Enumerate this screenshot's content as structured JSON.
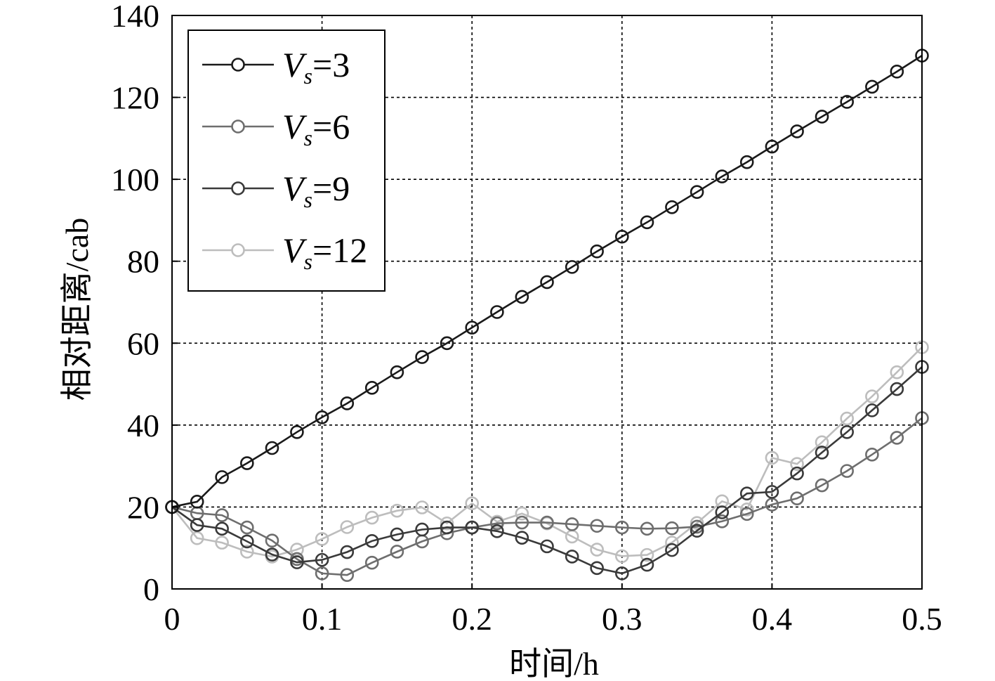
{
  "chart_data": {
    "type": "line",
    "title": "",
    "xlabel": "时间/h",
    "ylabel": "相对距离/cab",
    "xlim": [
      0,
      0.5
    ],
    "ylim": [
      0,
      140
    ],
    "xticks": [
      0,
      0.1,
      0.2,
      0.3,
      0.4,
      0.5
    ],
    "xtick_labels": [
      "0",
      "0.1",
      "0.2",
      "0.3",
      "0.4",
      "0.5"
    ],
    "yticks": [
      0,
      20,
      40,
      60,
      80,
      100,
      120,
      140
    ],
    "ytick_labels": [
      "0",
      "20",
      "40",
      "60",
      "80",
      "100",
      "120",
      "140"
    ],
    "grid": true,
    "legend_position": "top-left",
    "x": [
      0,
      0.0167,
      0.0333,
      0.05,
      0.0667,
      0.0833,
      0.1,
      0.1167,
      0.1333,
      0.15,
      0.1667,
      0.1833,
      0.2,
      0.2167,
      0.2333,
      0.25,
      0.2667,
      0.2833,
      0.3,
      0.3167,
      0.3333,
      0.35,
      0.3667,
      0.3833,
      0.4,
      0.4167,
      0.4333,
      0.45,
      0.4667,
      0.4833,
      0.5
    ],
    "series": [
      {
        "name": "Vs=3",
        "legend_var": "V",
        "legend_sub": "s",
        "legend_value": "=3",
        "color": "#1a1a1a",
        "values": [
          20,
          21.3,
          27.3,
          30.7,
          34.4,
          38.3,
          41.9,
          45.3,
          49.1,
          52.9,
          56.6,
          60.0,
          63.8,
          67.6,
          71.3,
          74.9,
          78.6,
          82.4,
          86.0,
          89.5,
          93.2,
          96.9,
          100.7,
          104.2,
          108.0,
          111.7,
          115.3,
          118.9,
          122.6,
          126.3,
          130.2
        ]
      },
      {
        "name": "Vs=6",
        "legend_var": "V",
        "legend_sub": "s",
        "legend_value": "=6",
        "color": "#6e6e6e",
        "values": [
          20,
          18.5,
          18.0,
          15.0,
          11.8,
          7.3,
          3.8,
          3.4,
          6.4,
          9.1,
          11.6,
          13.6,
          15.0,
          16.0,
          16.2,
          16.2,
          15.8,
          15.4,
          15.0,
          14.7,
          14.8,
          15.2,
          16.5,
          18.3,
          20.6,
          22.1,
          25.3,
          28.8,
          32.8,
          36.9,
          41.7
        ]
      },
      {
        "name": "Vs=9",
        "legend_var": "V",
        "legend_sub": "s",
        "legend_value": "=9",
        "color": "#3a3a3a",
        "values": [
          20,
          15.6,
          14.7,
          11.6,
          8.4,
          6.5,
          7.1,
          9.0,
          11.7,
          13.3,
          14.5,
          15.0,
          15.0,
          14.1,
          12.5,
          10.4,
          7.9,
          5.1,
          3.8,
          5.9,
          9.5,
          14.2,
          18.7,
          23.3,
          23.7,
          28.2,
          33.3,
          38.3,
          43.6,
          48.8,
          54.2
        ]
      },
      {
        "name": "Vs=12",
        "legend_var": "V",
        "legend_sub": "s",
        "legend_value": "=12",
        "color": "#bdbdbd",
        "values": [
          20,
          12.4,
          11.3,
          9.1,
          7.9,
          9.6,
          12.2,
          15.1,
          17.4,
          19.1,
          19.9,
          16.0,
          20.9,
          16.4,
          18.4,
          16.0,
          12.8,
          9.6,
          8.0,
          8.3,
          11.3,
          16.1,
          21.4,
          19.4,
          32.0,
          30.5,
          35.8,
          41.6,
          47.0,
          52.9,
          59.0
        ]
      }
    ]
  }
}
